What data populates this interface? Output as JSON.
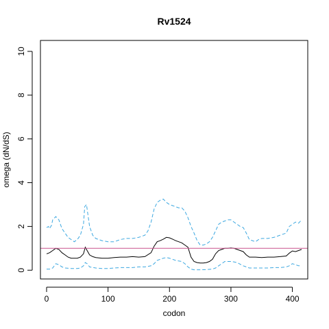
{
  "chart_data": {
    "type": "line",
    "title": "Rv1524",
    "xlabel": "codon",
    "ylabel": "omega (dN/dS)",
    "xlim": [
      -10,
      425
    ],
    "ylim": [
      -0.4,
      10.5
    ],
    "xticks": [
      0,
      100,
      200,
      300,
      400
    ],
    "yticks": [
      0,
      2,
      4,
      6,
      8,
      10
    ],
    "grid": false,
    "reference_line": {
      "y": 1,
      "color": "#c8508c"
    },
    "series": [
      {
        "style": "solid",
        "color": "#000000",
        "x": [
          0,
          5,
          10,
          15,
          20,
          25,
          30,
          35,
          40,
          45,
          50,
          55,
          60,
          63,
          66,
          70,
          75,
          80,
          90,
          100,
          110,
          120,
          130,
          140,
          150,
          160,
          170,
          175,
          180,
          185,
          190,
          195,
          200,
          205,
          210,
          215,
          220,
          225,
          230,
          235,
          240,
          245,
          250,
          255,
          260,
          265,
          270,
          275,
          280,
          285,
          290,
          295,
          300,
          305,
          310,
          315,
          320,
          325,
          330,
          340,
          350,
          360,
          370,
          380,
          390,
          395,
          400,
          405,
          410,
          415
        ],
        "values": [
          0.75,
          0.8,
          0.9,
          1.0,
          0.95,
          0.8,
          0.7,
          0.6,
          0.55,
          0.55,
          0.55,
          0.6,
          0.75,
          1.05,
          0.9,
          0.7,
          0.62,
          0.58,
          0.55,
          0.55,
          0.58,
          0.6,
          0.6,
          0.62,
          0.6,
          0.62,
          0.8,
          1.1,
          1.3,
          1.35,
          1.42,
          1.5,
          1.48,
          1.42,
          1.35,
          1.3,
          1.25,
          1.15,
          1.05,
          0.6,
          0.4,
          0.35,
          0.33,
          0.33,
          0.35,
          0.4,
          0.5,
          0.75,
          0.9,
          0.95,
          1.0,
          1.0,
          1.02,
          1.0,
          0.95,
          0.9,
          0.85,
          0.7,
          0.6,
          0.6,
          0.58,
          0.6,
          0.6,
          0.62,
          0.65,
          0.78,
          0.88,
          0.85,
          0.9,
          0.95
        ]
      },
      {
        "style": "dashed",
        "color": "#3ba7e0",
        "x": [
          0,
          3,
          5,
          8,
          10,
          15,
          20,
          25,
          30,
          35,
          40,
          45,
          50,
          55,
          60,
          62,
          65,
          70,
          75,
          80,
          90,
          100,
          110,
          120,
          130,
          140,
          150,
          160,
          165,
          170,
          175,
          180,
          185,
          190,
          195,
          200,
          205,
          210,
          215,
          220,
          225,
          230,
          235,
          240,
          245,
          250,
          255,
          260,
          265,
          270,
          275,
          280,
          285,
          290,
          295,
          300,
          305,
          310,
          315,
          320,
          325,
          330,
          335,
          340,
          345,
          350,
          360,
          370,
          380,
          390,
          395,
          400,
          405,
          410,
          415
        ],
        "values": [
          1.95,
          2.0,
          1.9,
          2.05,
          2.3,
          2.45,
          2.3,
          1.9,
          1.7,
          1.5,
          1.4,
          1.3,
          1.4,
          1.6,
          2.1,
          2.9,
          3.0,
          2.0,
          1.6,
          1.45,
          1.35,
          1.3,
          1.3,
          1.4,
          1.45,
          1.45,
          1.5,
          1.6,
          1.8,
          2.2,
          2.8,
          3.1,
          3.2,
          3.25,
          3.1,
          3.0,
          2.95,
          2.9,
          2.85,
          2.85,
          2.7,
          2.4,
          2.0,
          1.7,
          1.35,
          1.15,
          1.15,
          1.2,
          1.3,
          1.5,
          1.8,
          2.1,
          2.2,
          2.25,
          2.3,
          2.3,
          2.2,
          2.1,
          2.0,
          1.95,
          1.7,
          1.4,
          1.35,
          1.3,
          1.4,
          1.45,
          1.45,
          1.5,
          1.6,
          1.7,
          2.0,
          2.1,
          2.2,
          2.15,
          2.3
        ]
      },
      {
        "style": "dashed",
        "color": "#3ba7e0",
        "x": [
          0,
          5,
          10,
          15,
          20,
          25,
          30,
          40,
          50,
          55,
          60,
          63,
          66,
          70,
          80,
          90,
          100,
          110,
          120,
          130,
          140,
          150,
          160,
          170,
          175,
          180,
          185,
          190,
          195,
          200,
          205,
          210,
          215,
          220,
          225,
          230,
          235,
          240,
          245,
          250,
          260,
          270,
          275,
          280,
          285,
          290,
          295,
          300,
          305,
          310,
          320,
          330,
          340,
          350,
          360,
          370,
          380,
          390,
          395,
          400,
          405,
          410,
          415
        ],
        "values": [
          0.05,
          0.05,
          0.1,
          0.3,
          0.25,
          0.15,
          0.1,
          0.08,
          0.08,
          0.1,
          0.2,
          0.35,
          0.3,
          0.15,
          0.1,
          0.08,
          0.08,
          0.1,
          0.12,
          0.12,
          0.12,
          0.15,
          0.15,
          0.2,
          0.3,
          0.45,
          0.5,
          0.55,
          0.58,
          0.55,
          0.5,
          0.45,
          0.42,
          0.4,
          0.3,
          0.15,
          0.05,
          0.02,
          0.02,
          0.02,
          0.03,
          0.05,
          0.1,
          0.2,
          0.3,
          0.4,
          0.4,
          0.4,
          0.38,
          0.35,
          0.2,
          0.1,
          0.1,
          0.1,
          0.1,
          0.12,
          0.12,
          0.15,
          0.2,
          0.3,
          0.25,
          0.2,
          0.2
        ]
      }
    ]
  }
}
